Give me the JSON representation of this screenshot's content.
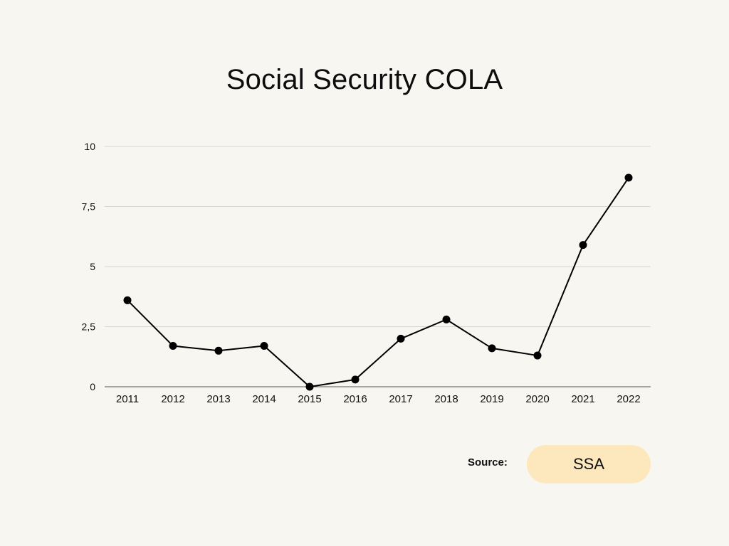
{
  "chart_data": {
    "type": "line",
    "title": "Social Security COLA",
    "xlabel": "",
    "ylabel": "",
    "ylim": [
      0,
      10
    ],
    "y_ticks": [
      "0",
      "2,5",
      "5",
      "7,5",
      "10"
    ],
    "y_tick_values": [
      0,
      2.5,
      5,
      7.5,
      10
    ],
    "categories": [
      "2011",
      "2012",
      "2013",
      "2014",
      "2015",
      "2016",
      "2017",
      "2018",
      "2019",
      "2020",
      "2021",
      "2022"
    ],
    "series": [
      {
        "name": "COLA",
        "values": [
          3.6,
          1.7,
          1.5,
          1.7,
          0.0,
          0.3,
          2.0,
          2.8,
          1.6,
          1.3,
          5.9,
          8.7
        ]
      }
    ],
    "grid": true,
    "line_color": "#000000",
    "grid_color": "#d9d6d0"
  },
  "source": {
    "label": "Source:",
    "value": "SSA",
    "pill_color": "#fde8bd"
  }
}
